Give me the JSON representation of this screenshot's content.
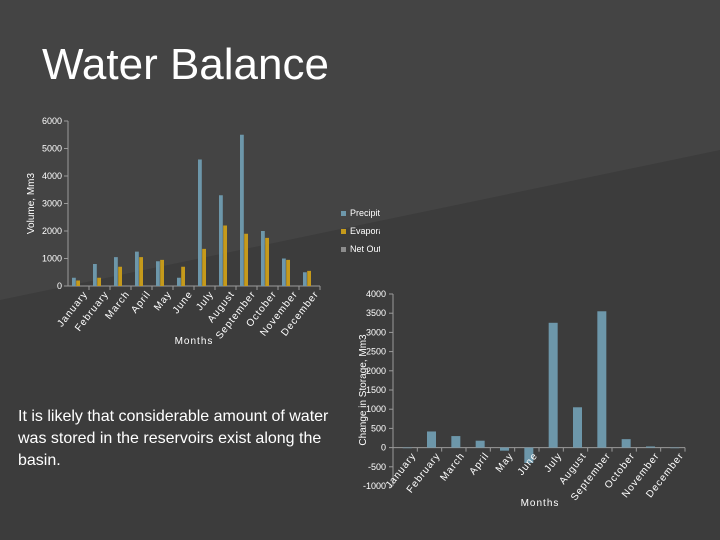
{
  "slide": {
    "title": "Water Balance",
    "note": "It is likely that considerable amount of water was stored in the reservoirs exist along the basin."
  },
  "colors": {
    "precipitation": "#6d97aa",
    "evaporation": "#c59a1b",
    "net_outflow": "#8c8c8c",
    "storage": "#6d97aa"
  },
  "chart_data": [
    {
      "type": "bar",
      "title": "",
      "xlabel": "Months",
      "ylabel": "Volume, Mm3",
      "ylim": [
        0,
        6000
      ],
      "yticks": [
        0,
        1000,
        2000,
        3000,
        4000,
        5000,
        6000
      ],
      "grid": false,
      "legend_position": "right",
      "categories": [
        "January",
        "February",
        "March",
        "April",
        "May",
        "June",
        "July",
        "August",
        "September",
        "October",
        "November",
        "December"
      ],
      "series": [
        {
          "name": "Precipitation",
          "values": [
            300,
            800,
            1050,
            1250,
            900,
            300,
            4600,
            3300,
            5500,
            2000,
            1000,
            500
          ]
        },
        {
          "name": "Evaporation",
          "values": [
            200,
            300,
            700,
            1050,
            950,
            700,
            1350,
            2200,
            1900,
            1750,
            950,
            550
          ]
        },
        {
          "name": "Net Outflow",
          "values": [
            0,
            0,
            0,
            0,
            0,
            0,
            0,
            0,
            0,
            0,
            0,
            0
          ]
        }
      ]
    },
    {
      "type": "bar",
      "title": "",
      "xlabel": "Months",
      "ylabel": "Change in Storage, Mm3",
      "ylim": [
        -1000,
        4000
      ],
      "yticks": [
        -1000,
        -500,
        0,
        500,
        1000,
        1500,
        2000,
        2500,
        3000,
        3500,
        4000
      ],
      "grid": false,
      "categories": [
        "January",
        "February",
        "March",
        "April",
        "May",
        "June",
        "July",
        "August",
        "September",
        "October",
        "November",
        "December"
      ],
      "series": [
        {
          "name": "",
          "values": [
            0,
            420,
            300,
            180,
            -80,
            -400,
            3250,
            1050,
            3550,
            220,
            30,
            0
          ]
        }
      ]
    }
  ]
}
